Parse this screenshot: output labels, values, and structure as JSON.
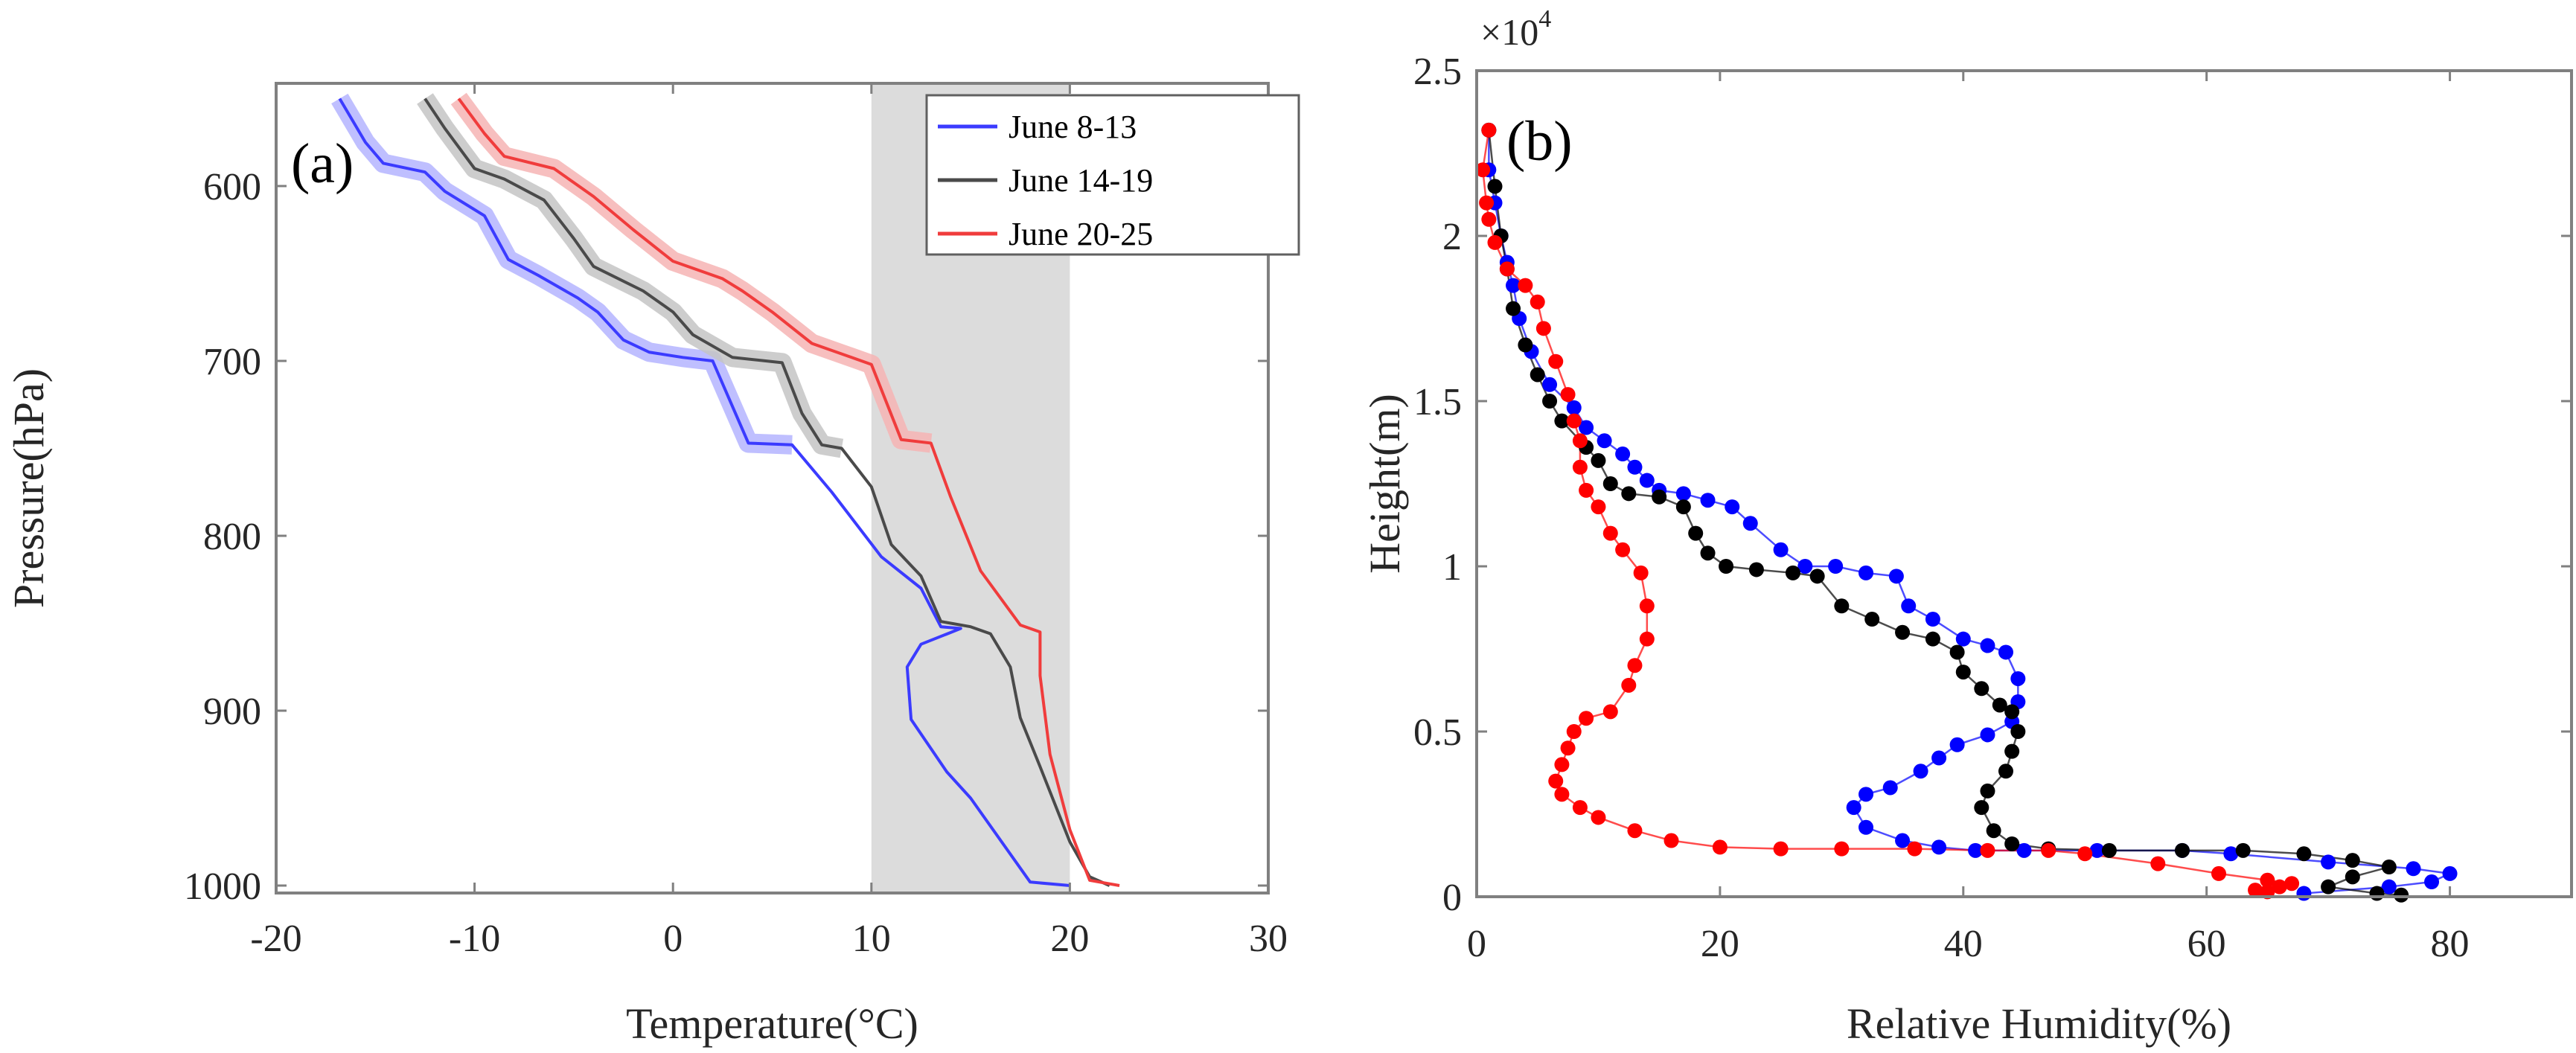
{
  "figure": {
    "panel_a_label": "(a)",
    "panel_b_label": "(b)"
  },
  "chart_data": [
    {
      "id": "a",
      "type": "line",
      "title": "",
      "panel_label": "(a)",
      "xlabel": "Temperature(°C)",
      "ylabel": "Pressure(hPa)",
      "xlim": [
        -20,
        30
      ],
      "ylim": [
        550,
        1005
      ],
      "y_reversed": true,
      "xticks": [
        -20,
        -10,
        0,
        10,
        20,
        30
      ],
      "xtick_labels": [
        "-20",
        "-10",
        "0",
        "10",
        "20",
        "30"
      ],
      "yticks": [
        600,
        700,
        800,
        900,
        1000
      ],
      "ytick_labels": [
        "600",
        "700",
        "800",
        "900",
        "1000"
      ],
      "shaded_region": {
        "x": [
          10,
          20
        ],
        "color": "#dcdcdc"
      },
      "legend": {
        "placement": "top-right",
        "entries": [
          "June 8-13",
          "June 14-19",
          "June 20-25"
        ]
      },
      "grid": false,
      "series": [
        {
          "name": "June 8-13",
          "color": "#3b3bff",
          "band_color": "#b4b4ff",
          "points": [
            [
              -16.8,
              550
            ],
            [
              -15.5,
              575
            ],
            [
              -14.6,
              587
            ],
            [
              -12.5,
              592
            ],
            [
              -11.5,
              603
            ],
            [
              -9.5,
              617
            ],
            [
              -8.3,
              642
            ],
            [
              -6.8,
              651
            ],
            [
              -4.8,
              664
            ],
            [
              -3.8,
              672
            ],
            [
              -2.5,
              688
            ],
            [
              -1.2,
              695
            ],
            [
              0.5,
              698
            ],
            [
              2.0,
              700
            ],
            [
              3.8,
              747
            ],
            [
              6.0,
              748
            ],
            [
              8.0,
              775
            ],
            [
              10.5,
              812
            ],
            [
              12.5,
              830
            ],
            [
              13.5,
              852
            ],
            [
              14.5,
              853
            ],
            [
              12.5,
              862
            ],
            [
              11.8,
              875
            ],
            [
              12.0,
              905
            ],
            [
              13.8,
              935
            ],
            [
              15.0,
              950
            ],
            [
              18.0,
              998
            ],
            [
              20.0,
              1000
            ]
          ]
        },
        {
          "name": "June 14-19",
          "color": "#4a4a4a",
          "band_color": "#c4c4c4",
          "points": [
            [
              -12.5,
              550
            ],
            [
              -11.5,
              567
            ],
            [
              -10.0,
              590
            ],
            [
              -8.5,
              596
            ],
            [
              -6.5,
              608
            ],
            [
              -5.0,
              630
            ],
            [
              -4.0,
              646
            ],
            [
              -1.5,
              660
            ],
            [
              0.0,
              672
            ],
            [
              1.0,
              685
            ],
            [
              3.0,
              698
            ],
            [
              5.5,
              701
            ],
            [
              6.5,
              730
            ],
            [
              7.5,
              748
            ],
            [
              8.5,
              750
            ],
            [
              10.0,
              772
            ],
            [
              11.0,
              805
            ],
            [
              12.5,
              823
            ],
            [
              13.5,
              849
            ],
            [
              15.0,
              852
            ],
            [
              16.0,
              856
            ],
            [
              17.0,
              875
            ],
            [
              17.5,
              904
            ],
            [
              18.5,
              932
            ],
            [
              20.0,
              975
            ],
            [
              21.0,
              995
            ],
            [
              22.0,
              1000
            ]
          ]
        },
        {
          "name": "June 20-25",
          "color": "#f03c3c",
          "band_color": "#f6b4b4",
          "points": [
            [
              -10.8,
              550
            ],
            [
              -9.5,
              570
            ],
            [
              -8.5,
              583
            ],
            [
              -6.0,
              590
            ],
            [
              -4.0,
              606
            ],
            [
              -2.0,
              625
            ],
            [
              0.0,
              643
            ],
            [
              2.5,
              653
            ],
            [
              3.5,
              660
            ],
            [
              5.0,
              672
            ],
            [
              7.0,
              690
            ],
            [
              9.0,
              698
            ],
            [
              10.0,
              702
            ],
            [
              11.5,
              745
            ],
            [
              13.0,
              747
            ],
            [
              14.0,
              778
            ],
            [
              15.5,
              820
            ],
            [
              17.5,
              851
            ],
            [
              18.5,
              855
            ],
            [
              18.5,
              880
            ],
            [
              19.0,
              925
            ],
            [
              20.0,
              968
            ],
            [
              21.0,
              997
            ],
            [
              22.5,
              1000
            ]
          ]
        }
      ]
    },
    {
      "id": "b",
      "type": "line",
      "title": "",
      "panel_label": "(b)",
      "xlabel": "Relative Humidity(%)",
      "ylabel": "Height(m)",
      "y_exponent_label": "×10^4",
      "xlim": [
        0,
        90
      ],
      "ylim": [
        0,
        25000
      ],
      "xticks": [
        0,
        20,
        40,
        60,
        80
      ],
      "xtick_labels": [
        "0",
        "20",
        "40",
        "60",
        "80"
      ],
      "yticks": [
        0,
        5000,
        10000,
        15000,
        20000,
        25000
      ],
      "ytick_labels": [
        "0",
        "0.5",
        "1",
        "1.5",
        "2",
        "2.5"
      ],
      "markers": "filled-circle",
      "grid": false,
      "series": [
        {
          "name": "June 8-13",
          "color": "#0000ff",
          "points": [
            [
              1,
              23200
            ],
            [
              1,
              22000
            ],
            [
              1.5,
              21000
            ],
            [
              2,
              20000
            ],
            [
              2.5,
              19200
            ],
            [
              3,
              18500
            ],
            [
              3.5,
              17500
            ],
            [
              4.5,
              16500
            ],
            [
              6,
              15500
            ],
            [
              8,
              14800
            ],
            [
              9,
              14200
            ],
            [
              10.5,
              13800
            ],
            [
              12,
              13400
            ],
            [
              13,
              13000
            ],
            [
              14,
              12600
            ],
            [
              15,
              12300
            ],
            [
              17,
              12200
            ],
            [
              19,
              12000
            ],
            [
              21,
              11800
            ],
            [
              22.5,
              11300
            ],
            [
              25,
              10500
            ],
            [
              27,
              10000
            ],
            [
              29.5,
              10000
            ],
            [
              32,
              9800
            ],
            [
              34.5,
              9700
            ],
            [
              35.5,
              8800
            ],
            [
              37.5,
              8400
            ],
            [
              40,
              7800
            ],
            [
              42,
              7600
            ],
            [
              43.5,
              7400
            ],
            [
              44.5,
              6600
            ],
            [
              44.5,
              5900
            ],
            [
              44,
              5300
            ],
            [
              42,
              4900
            ],
            [
              39.5,
              4600
            ],
            [
              38,
              4200
            ],
            [
              36.5,
              3800
            ],
            [
              34,
              3300
            ],
            [
              32,
              3100
            ],
            [
              31,
              2700
            ],
            [
              32,
              2100
            ],
            [
              35,
              1700
            ],
            [
              38,
              1500
            ],
            [
              41,
              1400
            ],
            [
              45,
              1400
            ],
            [
              51,
              1400
            ],
            [
              58,
              1400
            ],
            [
              62,
              1300
            ],
            [
              70,
              1050
            ],
            [
              77,
              850
            ],
            [
              80,
              700
            ],
            [
              78.5,
              450
            ],
            [
              75,
              300
            ],
            [
              68,
              100
            ]
          ]
        },
        {
          "name": "June 14-19",
          "color": "#000000",
          "points": [
            [
              1,
              23200
            ],
            [
              1.5,
              21500
            ],
            [
              2,
              20000
            ],
            [
              2.5,
              19000
            ],
            [
              3,
              17800
            ],
            [
              4,
              16700
            ],
            [
              5,
              15800
            ],
            [
              6,
              15000
            ],
            [
              7,
              14400
            ],
            [
              9,
              13600
            ],
            [
              10,
              13200
            ],
            [
              11,
              12500
            ],
            [
              12.5,
              12200
            ],
            [
              15,
              12100
            ],
            [
              17,
              11800
            ],
            [
              18,
              11000
            ],
            [
              19,
              10400
            ],
            [
              20.5,
              10000
            ],
            [
              23,
              9900
            ],
            [
              26,
              9800
            ],
            [
              28,
              9700
            ],
            [
              30,
              8800
            ],
            [
              32.5,
              8400
            ],
            [
              35,
              8000
            ],
            [
              37.5,
              7800
            ],
            [
              39.5,
              7400
            ],
            [
              40,
              6800
            ],
            [
              41.5,
              6300
            ],
            [
              43,
              5800
            ],
            [
              44,
              5600
            ],
            [
              44.5,
              5000
            ],
            [
              44,
              4400
            ],
            [
              43.5,
              3800
            ],
            [
              42,
              3200
            ],
            [
              41.5,
              2700
            ],
            [
              42.5,
              2000
            ],
            [
              44,
              1600
            ],
            [
              47,
              1450
            ],
            [
              52,
              1400
            ],
            [
              58,
              1400
            ],
            [
              63,
              1400
            ],
            [
              68,
              1300
            ],
            [
              72,
              1100
            ],
            [
              75,
              900
            ],
            [
              72,
              600
            ],
            [
              70,
              300
            ],
            [
              74,
              100
            ],
            [
              76,
              50
            ]
          ]
        },
        {
          "name": "June 20-25",
          "color": "#ff0000",
          "points": [
            [
              1,
              23200
            ],
            [
              0.5,
              22000
            ],
            [
              0.8,
              21000
            ],
            [
              1,
              20500
            ],
            [
              1.5,
              19800
            ],
            [
              2.5,
              19000
            ],
            [
              4,
              18500
            ],
            [
              5,
              18000
            ],
            [
              5.5,
              17200
            ],
            [
              6.5,
              16200
            ],
            [
              7.5,
              15200
            ],
            [
              8,
              14400
            ],
            [
              8.5,
              13800
            ],
            [
              8.5,
              13000
            ],
            [
              9,
              12300
            ],
            [
              10,
              11800
            ],
            [
              11,
              11000
            ],
            [
              12,
              10500
            ],
            [
              13.5,
              9800
            ],
            [
              14,
              8800
            ],
            [
              14,
              7800
            ],
            [
              13,
              7000
            ],
            [
              12.5,
              6400
            ],
            [
              11,
              5600
            ],
            [
              9,
              5400
            ],
            [
              8,
              5000
            ],
            [
              7.5,
              4500
            ],
            [
              7,
              4000
            ],
            [
              6.5,
              3500
            ],
            [
              7,
              3100
            ],
            [
              8.5,
              2700
            ],
            [
              10,
              2400
            ],
            [
              13,
              2000
            ],
            [
              16,
              1700
            ],
            [
              20,
              1500
            ],
            [
              25,
              1450
            ],
            [
              30,
              1450
            ],
            [
              36,
              1450
            ],
            [
              42,
              1400
            ],
            [
              47,
              1400
            ],
            [
              50,
              1300
            ],
            [
              56,
              1000
            ],
            [
              61,
              700
            ],
            [
              65,
              500
            ],
            [
              67,
              400
            ],
            [
              66,
              300
            ],
            [
              64,
              200
            ],
            [
              65,
              150
            ]
          ]
        }
      ]
    }
  ]
}
